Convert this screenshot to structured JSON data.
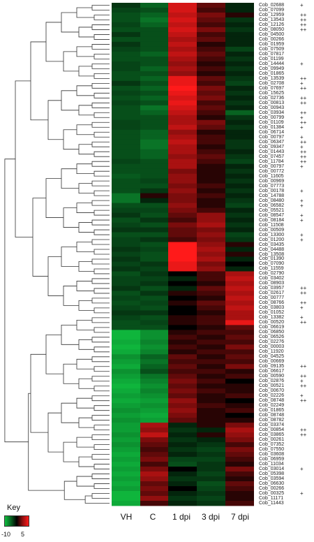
{
  "chart_data": {
    "type": "heatmap",
    "columns": [
      "VH",
      "C",
      "1 dpi",
      "3 dpi",
      "7 dpi"
    ],
    "key": {
      "title": "Key",
      "min": -10,
      "max": 5,
      "min_label": "-10",
      "max_label": "5",
      "colors": {
        "low": "#10c040",
        "mid": "#000000",
        "high": "#ff1a1a"
      }
    },
    "rows": [
      {
        "label": "Cob_02688",
        "marks": "+",
        "values": [
          -1.0,
          -3.0,
          4.0,
          1.5,
          -0.5
        ]
      },
      {
        "label": "Cob_07099",
        "marks": "",
        "values": [
          -1.5,
          -2.0,
          4.0,
          1.0,
          -0.5
        ]
      },
      {
        "label": "Cob_12959",
        "marks": "++",
        "values": [
          -2.0,
          -3.0,
          3.5,
          2.0,
          0.5
        ]
      },
      {
        "label": "Cob_13543",
        "marks": "++",
        "values": [
          -2.0,
          -4.0,
          4.0,
          1.5,
          -1.0
        ]
      },
      {
        "label": "Cob_12126",
        "marks": "++",
        "values": [
          -1.5,
          -3.0,
          3.5,
          1.0,
          -0.5
        ]
      },
      {
        "label": "Cob_08050",
        "marks": "++",
        "values": [
          -2.0,
          -2.0,
          4.0,
          2.0,
          -1.0
        ]
      },
      {
        "label": "Cob_04500",
        "marks": "",
        "values": [
          -1.0,
          -2.0,
          3.5,
          1.0,
          -0.5
        ]
      },
      {
        "label": "Cob_00266",
        "marks": "",
        "values": [
          -2.0,
          -2.0,
          3.0,
          1.5,
          -0.5
        ]
      },
      {
        "label": "Cob_01959",
        "marks": "",
        "values": [
          -1.0,
          -2.0,
          3.5,
          0.5,
          -0.5
        ]
      },
      {
        "label": "Cob_07509",
        "marks": "",
        "values": [
          -1.5,
          -2.0,
          3.0,
          1.0,
          -1.5
        ]
      },
      {
        "label": "Cob_07817",
        "marks": "",
        "values": [
          -2.0,
          -3.0,
          3.5,
          1.5,
          -0.5
        ]
      },
      {
        "label": "Cob_01199",
        "marks": "",
        "values": [
          -2.0,
          -2.0,
          3.0,
          1.0,
          -1.0
        ]
      },
      {
        "label": "Cob_14444",
        "marks": "+",
        "values": [
          -1.5,
          -2.0,
          2.5,
          0.5,
          -0.5
        ]
      },
      {
        "label": "Cob_09949",
        "marks": "",
        "values": [
          -1.5,
          -3.0,
          3.0,
          1.0,
          -1.0
        ]
      },
      {
        "label": "Cob_01865",
        "marks": "",
        "values": [
          -2.0,
          -2.0,
          2.5,
          0.5,
          -0.5
        ]
      },
      {
        "label": "Cob_13539",
        "marks": "++",
        "values": [
          -2.0,
          -3.0,
          4.5,
          1.5,
          -1.0
        ]
      },
      {
        "label": "Cob_02708",
        "marks": "+",
        "values": [
          -1.0,
          -2.0,
          4.5,
          1.0,
          -1.5
        ]
      },
      {
        "label": "Cob_07697",
        "marks": "++",
        "values": [
          -2.0,
          -3.0,
          5.0,
          2.0,
          -0.5
        ]
      },
      {
        "label": "Cob_15625",
        "marks": "",
        "values": [
          -1.5,
          -2.0,
          4.5,
          1.5,
          -1.0
        ]
      },
      {
        "label": "Cob_02736",
        "marks": "++",
        "values": [
          -2.0,
          -3.0,
          4.0,
          2.0,
          -0.5
        ]
      },
      {
        "label": "Cob_00813",
        "marks": "++",
        "values": [
          -1.5,
          -2.0,
          4.5,
          1.0,
          -1.0
        ]
      },
      {
        "label": "Cob_00943",
        "marks": "",
        "values": [
          -2.0,
          -4.0,
          4.0,
          1.5,
          -0.5
        ]
      },
      {
        "label": "Cob_03934",
        "marks": "++",
        "values": [
          -2.0,
          -3.0,
          3.5,
          1.0,
          -3.0
        ]
      },
      {
        "label": "Cob_00799",
        "marks": "+",
        "values": [
          -2.0,
          -2.0,
          3.0,
          0.5,
          -1.0
        ]
      },
      {
        "label": "Cob_01109",
        "marks": "++",
        "values": [
          -1.5,
          -2.0,
          3.0,
          2.0,
          -0.5
        ]
      },
      {
        "label": "Cob_01384",
        "marks": "+",
        "values": [
          -1.5,
          -2.0,
          3.5,
          1.5,
          -1.0
        ]
      },
      {
        "label": "Cob_06714",
        "marks": "",
        "values": [
          -2.0,
          -3.0,
          2.5,
          0.5,
          -0.5
        ]
      },
      {
        "label": "Cob_00797",
        "marks": "+",
        "values": [
          -2.0,
          -3.0,
          3.0,
          1.0,
          -0.5
        ]
      },
      {
        "label": "Cob_06347",
        "marks": "++",
        "values": [
          -2.0,
          -4.0,
          3.5,
          1.0,
          -1.0
        ]
      },
      {
        "label": "Cob_09347",
        "marks": "+",
        "values": [
          -2.0,
          -4.0,
          3.0,
          0.5,
          -1.0
        ]
      },
      {
        "label": "Cob_01443",
        "marks": "++",
        "values": [
          -2.0,
          -3.0,
          3.0,
          1.0,
          -0.5
        ]
      },
      {
        "label": "Cob_07457",
        "marks": "++",
        "values": [
          -2.0,
          -3.0,
          2.5,
          1.5,
          -1.0
        ]
      },
      {
        "label": "Cob_11784",
        "marks": "++",
        "values": [
          -1.5,
          -2.0,
          3.0,
          1.0,
          -1.5
        ]
      },
      {
        "label": "Cob_00797",
        "marks": "+",
        "values": [
          -2.0,
          -2.0,
          3.0,
          0.5,
          -0.5
        ]
      },
      {
        "label": "Cob_00772",
        "marks": "",
        "values": [
          -2.0,
          -2.0,
          2.0,
          0.5,
          -1.0
        ]
      },
      {
        "label": "Cob_11605",
        "marks": "",
        "values": [
          -2.5,
          -2.0,
          2.5,
          0.5,
          -0.5
        ]
      },
      {
        "label": "Cob_00969",
        "marks": "",
        "values": [
          -2.0,
          -1.5,
          2.5,
          0.5,
          -1.0
        ]
      },
      {
        "label": "Cob_07773",
        "marks": "",
        "values": [
          -2.0,
          -2.0,
          2.0,
          1.0,
          -0.5
        ]
      },
      {
        "label": "Cob_00178",
        "marks": "+",
        "values": [
          -2.0,
          -1.0,
          2.5,
          0.5,
          -1.0
        ]
      },
      {
        "label": "Cob_14788",
        "marks": "",
        "values": [
          -4.0,
          0.5,
          2.0,
          1.0,
          -0.5
        ]
      },
      {
        "label": "Cob_08480",
        "marks": "+",
        "values": [
          -4.0,
          -0.5,
          2.0,
          0.5,
          -1.0
        ]
      },
      {
        "label": "Cob_06582",
        "marks": "+",
        "values": [
          -2.0,
          -2.0,
          2.5,
          0.5,
          -1.5
        ]
      },
      {
        "label": "Cob_05521",
        "marks": "",
        "values": [
          -1.5,
          -1.5,
          2.0,
          1.0,
          -0.5
        ]
      },
      {
        "label": "Cob_08547",
        "marks": "+",
        "values": [
          -1.0,
          -2.0,
          1.5,
          2.5,
          -1.0
        ]
      },
      {
        "label": "Cob_08184",
        "marks": "+",
        "values": [
          -2.0,
          -1.0,
          1.0,
          2.5,
          -0.5
        ]
      },
      {
        "label": "Cob_11508",
        "marks": "",
        "values": [
          -1.5,
          -2.0,
          2.0,
          3.0,
          -1.0
        ]
      },
      {
        "label": "Cob_00509",
        "marks": "",
        "values": [
          -1.0,
          -1.0,
          1.5,
          2.0,
          -0.5
        ]
      },
      {
        "label": "Cob_13300",
        "marks": "+",
        "values": [
          -2.0,
          -2.0,
          1.5,
          2.5,
          -1.5
        ]
      },
      {
        "label": "Cob_01200",
        "marks": "+",
        "values": [
          -1.5,
          -1.0,
          1.0,
          2.0,
          -1.0
        ]
      },
      {
        "label": "Cob_03435",
        "marks": "",
        "values": [
          -1.5,
          -2.0,
          5.0,
          2.5,
          0.5
        ]
      },
      {
        "label": "Cob_04488",
        "marks": "",
        "values": [
          -1.0,
          -1.5,
          5.0,
          3.0,
          -0.5
        ]
      },
      {
        "label": "Cob_13508",
        "marks": "",
        "values": [
          -1.5,
          -2.0,
          5.0,
          2.5,
          0.5
        ]
      },
      {
        "label": "Cob_01390",
        "marks": "",
        "values": [
          -1.0,
          -2.0,
          5.0,
          3.0,
          -0.5
        ]
      },
      {
        "label": "Cob_07090",
        "marks": "",
        "values": [
          -1.5,
          -1.0,
          4.5,
          2.0,
          0.0
        ]
      },
      {
        "label": "Cob_11559",
        "marks": "",
        "values": [
          -1.0,
          -1.5,
          4.5,
          2.5,
          -0.5
        ]
      },
      {
        "label": "Cob_02790",
        "marks": "",
        "values": [
          -2.0,
          -1.0,
          0.0,
          1.0,
          3.0
        ]
      },
      {
        "label": "Cob_03402",
        "marks": "",
        "values": [
          -1.5,
          -1.5,
          -0.5,
          1.0,
          3.5
        ]
      },
      {
        "label": "Cob_08903",
        "marks": "",
        "values": [
          -1.5,
          -1.0,
          0.0,
          0.5,
          3.0
        ]
      },
      {
        "label": "Cob_03957",
        "marks": "++",
        "values": [
          -1.0,
          -2.0,
          -0.5,
          1.5,
          3.5
        ]
      },
      {
        "label": "Cob_02617",
        "marks": "++",
        "values": [
          -2.0,
          -1.0,
          0.5,
          1.0,
          3.0
        ]
      },
      {
        "label": "Cob_00777",
        "marks": "",
        "values": [
          -1.5,
          -2.0,
          0.0,
          0.5,
          3.5
        ]
      },
      {
        "label": "Cob_08766",
        "marks": "++",
        "values": [
          -2.0,
          -1.5,
          0.5,
          1.5,
          3.0
        ]
      },
      {
        "label": "Cob_03803",
        "marks": "+",
        "values": [
          -1.5,
          -2.0,
          0.0,
          1.0,
          3.5
        ]
      },
      {
        "label": "Cob_01052",
        "marks": "",
        "values": [
          -1.0,
          -1.0,
          0.0,
          0.5,
          3.0
        ]
      },
      {
        "label": "Cob_13382",
        "marks": "+",
        "values": [
          -1.5,
          -2.0,
          0.5,
          1.0,
          3.0
        ]
      },
      {
        "label": "Cob_00520",
        "marks": "++",
        "values": [
          -2.0,
          -1.5,
          0.5,
          1.0,
          4.5
        ]
      },
      {
        "label": "Cob_06619",
        "marks": "",
        "values": [
          -2.0,
          -2.0,
          0.0,
          0.5,
          1.5
        ]
      },
      {
        "label": "Cob_06850",
        "marks": "",
        "values": [
          -9.0,
          -6.0,
          0.5,
          1.0,
          1.0
        ]
      },
      {
        "label": "Cob_06526",
        "marks": "",
        "values": [
          -9.0,
          -6.0,
          1.0,
          0.5,
          1.5
        ]
      },
      {
        "label": "Cob_02276",
        "marks": "",
        "values": [
          -8.0,
          -5.0,
          0.5,
          1.0,
          1.0
        ]
      },
      {
        "label": "Cob_00003",
        "marks": "",
        "values": [
          -9.0,
          -6.0,
          1.0,
          0.5,
          2.0
        ]
      },
      {
        "label": "Cob_11920",
        "marks": "",
        "values": [
          -8.0,
          -5.0,
          0.5,
          1.0,
          1.0
        ]
      },
      {
        "label": "Cob_04525",
        "marks": "",
        "values": [
          -6.0,
          -3.0,
          1.5,
          0.5,
          1.5
        ]
      },
      {
        "label": "Cob_00669",
        "marks": "",
        "values": [
          -7.0,
          -4.0,
          1.0,
          1.0,
          1.0
        ]
      },
      {
        "label": "Cob_09135",
        "marks": "++",
        "values": [
          -8.0,
          -3.0,
          1.5,
          0.5,
          2.0
        ]
      },
      {
        "label": "Cob_06617",
        "marks": "",
        "values": [
          -6.0,
          -2.0,
          1.0,
          1.0,
          0.5
        ]
      },
      {
        "label": "Cob_00590",
        "marks": "++",
        "values": [
          -7.0,
          -4.0,
          1.5,
          0.5,
          1.0
        ]
      },
      {
        "label": "Cob_02876",
        "marks": "+",
        "values": [
          -8.0,
          -5.0,
          2.0,
          1.0,
          0.0
        ]
      },
      {
        "label": "Cob_00521",
        "marks": "++",
        "values": [
          -9.0,
          -6.0,
          1.5,
          0.5,
          0.5
        ]
      },
      {
        "label": "Cob_00670",
        "marks": "",
        "values": [
          -8.0,
          -5.0,
          2.0,
          1.0,
          0.5
        ]
      },
      {
        "label": "Cob_02226",
        "marks": "+",
        "values": [
          -7.0,
          -6.0,
          1.5,
          0.5,
          1.0
        ]
      },
      {
        "label": "Cob_08748",
        "marks": "++",
        "values": [
          -8.0,
          -7.0,
          2.5,
          0.5,
          0.0
        ]
      },
      {
        "label": "Cob_02249",
        "marks": "",
        "values": [
          -7.0,
          -6.0,
          2.0,
          1.0,
          0.5
        ]
      },
      {
        "label": "Cob_01865",
        "marks": "",
        "values": [
          -6.0,
          -7.0,
          2.5,
          0.5,
          1.0
        ]
      },
      {
        "label": "Cob_08748",
        "marks": "",
        "values": [
          -7.0,
          -8.0,
          2.0,
          0.5,
          0.0
        ]
      },
      {
        "label": "Cob_08782",
        "marks": "",
        "values": [
          -6.0,
          -7.0,
          1.5,
          0.5,
          0.5
        ]
      },
      {
        "label": "Cob_03374",
        "marks": "",
        "values": [
          -7.0,
          3.0,
          -0.5,
          0.5,
          2.0
        ]
      },
      {
        "label": "Cob_00854",
        "marks": "++",
        "values": [
          -7.0,
          2.5,
          -1.0,
          -0.5,
          3.0
        ]
      },
      {
        "label": "Cob_03865",
        "marks": "++",
        "values": [
          -6.0,
          3.5,
          -0.5,
          0.5,
          2.5
        ]
      },
      {
        "label": "Cob_00261",
        "marks": "",
        "values": [
          -7.0,
          2.0,
          -1.0,
          -0.5,
          2.0
        ]
      },
      {
        "label": "Cob_07352",
        "marks": "",
        "values": [
          -6.0,
          1.5,
          -0.5,
          -1.0,
          1.0
        ]
      },
      {
        "label": "Cob_07550",
        "marks": "",
        "values": [
          -7.0,
          1.0,
          -1.0,
          -1.5,
          2.0
        ]
      },
      {
        "label": "Cob_03608",
        "marks": "",
        "values": [
          -8.0,
          1.5,
          -0.5,
          -1.0,
          1.5
        ]
      },
      {
        "label": "Cob_06959",
        "marks": "",
        "values": [
          -7.0,
          2.0,
          -1.5,
          -1.5,
          1.0
        ]
      },
      {
        "label": "Cob_11034",
        "marks": "",
        "values": [
          -8.0,
          1.0,
          -2.0,
          -1.0,
          0.5
        ]
      },
      {
        "label": "Cob_03014",
        "marks": "+",
        "values": [
          -7.0,
          2.0,
          0.0,
          -1.0,
          2.0
        ]
      },
      {
        "label": "Cob_05398",
        "marks": "",
        "values": [
          -8.0,
          3.0,
          -0.5,
          -1.5,
          1.0
        ]
      },
      {
        "label": "Cob_03594",
        "marks": "",
        "values": [
          -7.0,
          2.5,
          -1.0,
          -1.0,
          0.5
        ]
      },
      {
        "label": "Cob_06630",
        "marks": "",
        "values": [
          -8.0,
          1.5,
          -0.5,
          -2.0,
          1.5
        ]
      },
      {
        "label": "Cob_00266",
        "marks": "",
        "values": [
          -7.0,
          2.0,
          0.0,
          -1.5,
          1.0
        ]
      },
      {
        "label": "Cob_00325",
        "marks": "+",
        "values": [
          -9.0,
          1.5,
          -0.5,
          -1.0,
          0.5
        ]
      },
      {
        "label": "Cob_11171",
        "marks": "",
        "values": [
          -9.0,
          2.5,
          -1.0,
          -1.5,
          0.5
        ]
      },
      {
        "label": "Cob_11443",
        "marks": "",
        "values": [
          -8.0,
          1.0,
          -0.5,
          -1.0,
          1.0
        ]
      }
    ]
  }
}
